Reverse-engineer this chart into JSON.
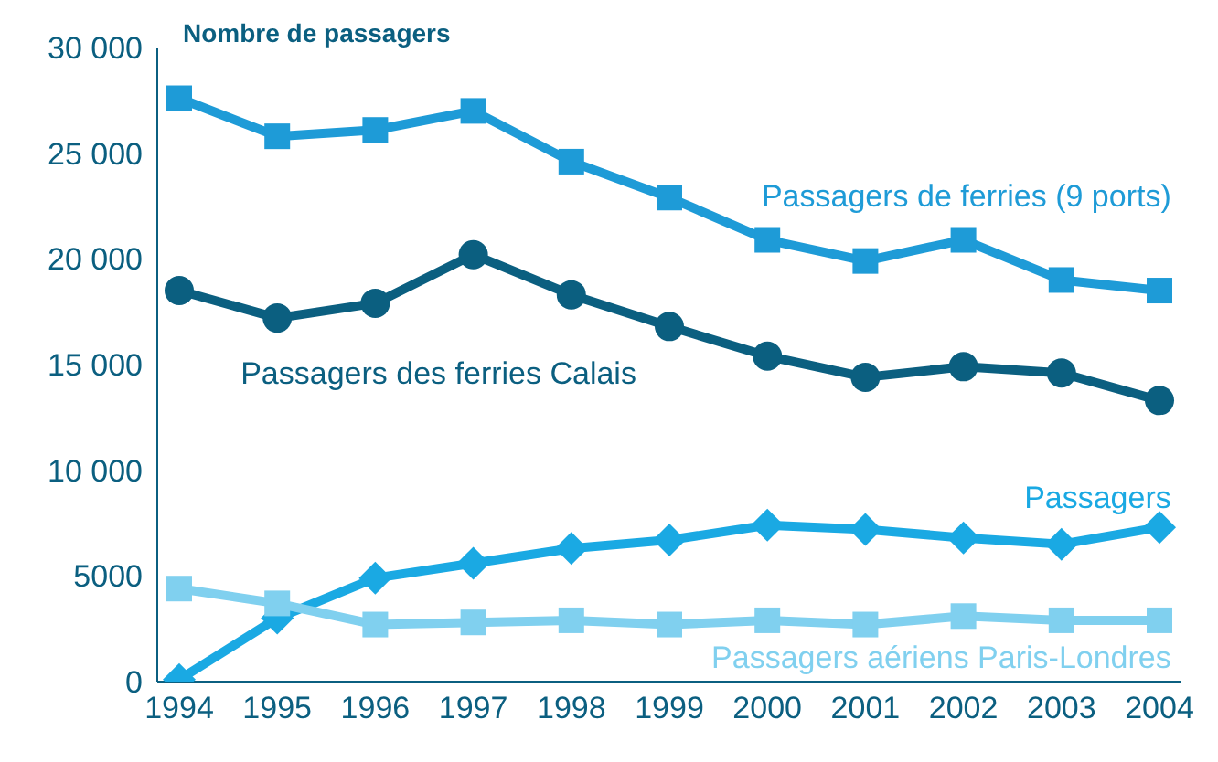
{
  "chart_data": {
    "type": "line",
    "ylabel": "Nombre de passagers",
    "categories": [
      "1994",
      "1995",
      "1996",
      "1997",
      "1998",
      "1999",
      "2000",
      "2001",
      "2002",
      "2003",
      "2004"
    ],
    "series": [
      {
        "name": "Passagers de ferries (9 ports)",
        "color": "#1e9bd7",
        "marker": "square",
        "values": [
          27600,
          25800,
          26100,
          27000,
          24600,
          22900,
          20900,
          19900,
          20900,
          19000,
          18500
        ]
      },
      {
        "name": "Passagers des ferries Calais",
        "color": "#0b5f80",
        "marker": "circle",
        "values": [
          18500,
          17200,
          17900,
          20200,
          18300,
          16800,
          15400,
          14400,
          14900,
          14600,
          13300
        ]
      },
      {
        "name": "Passagers",
        "color": "#1aa9e3",
        "marker": "diamond",
        "values": [
          100,
          3000,
          4900,
          5600,
          6300,
          6700,
          7400,
          7200,
          6800,
          6500,
          7300
        ]
      },
      {
        "name": "Passagers aériens Paris-Londres",
        "color": "#80d0ef",
        "marker": "square",
        "values": [
          4400,
          3700,
          2700,
          2800,
          2900,
          2700,
          2900,
          2700,
          3100,
          2900,
          2900
        ]
      }
    ],
    "ylim": [
      0,
      30000
    ],
    "yticks": [
      0,
      {
        "value": 5000,
        "label": "5000"
      },
      {
        "value": 10000,
        "label": "10 000"
      },
      {
        "value": 15000,
        "label": "15 000"
      },
      {
        "value": 20000,
        "label": "20 000"
      },
      {
        "value": 25000,
        "label": "25 000"
      },
      {
        "value": 30000,
        "label": "30 000"
      }
    ],
    "grid": false,
    "legend": false,
    "line_style": "solid"
  }
}
